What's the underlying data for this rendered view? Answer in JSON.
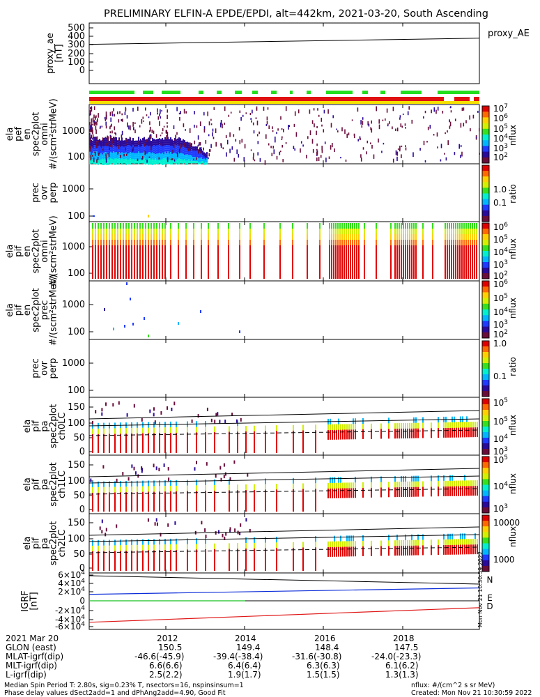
{
  "title": "PRELIMINARY ELFIN-A EPDE/EPDI, alt=442km, 2021-03-20, South Ascending",
  "colors": {
    "bar_green": "#22e01e",
    "bar_red": "#e01010",
    "bar_yellow": "#f5e000",
    "igrf_N": "#0a2bd8",
    "igrf_E": "#14c21e",
    "igrf_D": "#e01818"
  },
  "colorbar_stops": [
    "#ffffff",
    "#6a0d3a",
    "#2a0a9a",
    "#1f3bff",
    "#00b7ff",
    "#00f0d0",
    "#36e01e",
    "#d2f000",
    "#ffd000",
    "#ff6a00",
    "#e00000"
  ],
  "chart_data": [
    {
      "type": "line",
      "ylabel": "proxy_ae\n[nT]",
      "yticks": [
        "500",
        "400",
        "300",
        "200",
        "100",
        "0"
      ],
      "ylim": [
        0,
        500
      ],
      "y_start": 340,
      "y_end": 400,
      "legend": "proxy_AE"
    },
    {
      "type": "heatmap",
      "ylabel": [
        "ela",
        "pef",
        "en",
        "spec2plot",
        "omni",
        "#/(scm²strMeV)"
      ],
      "yticks": [
        "1000",
        "100"
      ],
      "cb_ticks_main": [
        "7",
        "6",
        "5",
        "4",
        "3",
        "2"
      ],
      "cb_unit": "nflux"
    },
    {
      "type": "heatmap",
      "ylabel": [
        "prec",
        "ovr",
        "perp"
      ],
      "yticks": [
        "1000",
        "100"
      ],
      "cb_ticks": [
        "1.0",
        "0.1"
      ],
      "cb_unit": "ratio"
    },
    {
      "type": "heatmap",
      "ylabel": [
        "ela",
        "pif",
        "en",
        "spec2plot",
        "omni",
        "#/(scm²strMeV)"
      ],
      "yticks": [
        "1000",
        "100"
      ],
      "cb_ticks_main": [
        "6",
        "5",
        "4",
        "3",
        "2"
      ],
      "cb_unit": "nflux"
    },
    {
      "type": "heatmap",
      "ylabel": [
        "ela",
        "pif",
        "en",
        "spec2plot",
        "prec",
        "#/(scm²strMeV)"
      ],
      "yticks": [
        "1000",
        "100"
      ],
      "cb_ticks_main": [
        "6",
        "5",
        "4",
        "3",
        "2"
      ],
      "cb_unit": "nflux"
    },
    {
      "type": "heatmap",
      "ylabel": [
        "prec",
        "ovr",
        "perp"
      ],
      "yticks": [
        "1000",
        "100"
      ],
      "cb_ticks": [
        "1.0",
        "0.1"
      ],
      "cb_unit": "ratio"
    },
    {
      "type": "heatmap",
      "ylabel": [
        "ela",
        "pif",
        "pa",
        "spec2plot",
        "ch0LC"
      ],
      "yticks": [
        "150",
        "100",
        "50",
        "0"
      ],
      "cb_ticks_main": [
        "5",
        "5",
        "4",
        "3"
      ],
      "cb_unit": "nflux"
    },
    {
      "type": "heatmap",
      "ylabel": [
        "ela",
        "pif",
        "pa",
        "spec2plot",
        "ch1LC"
      ],
      "yticks": [
        "150",
        "100",
        "50",
        "0"
      ],
      "cb_ticks_main": [
        "5",
        "4",
        "3"
      ],
      "cb_unit": "nflux"
    },
    {
      "type": "heatmap",
      "ylabel": [
        "ela",
        "pif",
        "pa",
        "spec2plot",
        "ch2LC"
      ],
      "yticks": [
        "150",
        "100",
        "50",
        "0"
      ],
      "cb_ticks": [
        "10000",
        "1000"
      ],
      "cb_unit": "nflux"
    },
    {
      "type": "line",
      "ylabel": "IGRF\n[nT]",
      "yticks_mant": [
        "6",
        "4",
        "2",
        "0",
        "-2",
        "-4",
        "-6"
      ],
      "yticks_exp": "4",
      "ylim": [
        -60000,
        60000
      ],
      "series": [
        {
          "name": "N",
          "y_start": 15000,
          "y_end": 30000
        },
        {
          "name": "E",
          "y_start": 0,
          "y_end": 0
        },
        {
          "name": "D",
          "y_start": -50000,
          "y_end": -16000
        }
      ]
    }
  ],
  "footer": {
    "date_label": "2021 Mar 20",
    "x_ticks": [
      "2012",
      "2014",
      "2016",
      "2018"
    ],
    "rows": [
      {
        "label": "GLON (east)",
        "values": [
          "150.5",
          "149.4",
          "148.4",
          "147.5"
        ]
      },
      {
        "label": "MLAT-igrf(dip)",
        "values": [
          "-46.6(-45.9)",
          "-39.4(-38.4)",
          "-31.6(-30.8)",
          "-24.0(-23.3)"
        ]
      },
      {
        "label": "MLT-igrf(dip)",
        "values": [
          "6.6(6.6)",
          "6.4(6.4)",
          "6.3(6.3)",
          "6.1(6.2)"
        ]
      },
      {
        "label": "L-igrf(dip)",
        "values": [
          "2.5(2.2)",
          "1.9(1.7)",
          "1.5(1.5)",
          "1.3(1.3)"
        ]
      }
    ],
    "note1": "Median Spin Period T: 2.80s, sig=0.23% T, nsectors=16, nspinsinsum=1",
    "note2": "Phase delay values dSect2add=1 and dPhAng2add=4.90, Good Fit",
    "nflux_unit": "nflux: #/(cm^2 s sr MeV)",
    "created": "Created: Mon Nov 21 10:30:59 2022",
    "side_stamp": "Mon Nov 21 10:30:59 2022"
  }
}
